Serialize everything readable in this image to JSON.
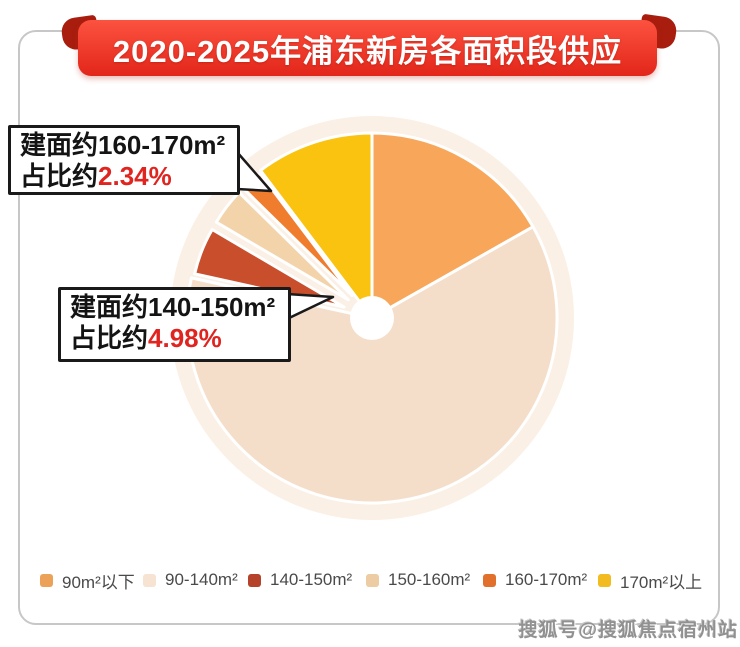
{
  "header": {
    "title": "2020-2025年浦东新房各面积段供应"
  },
  "callouts": [
    {
      "line1": "建面约160-170m²",
      "prefix": "占比约",
      "value": "2.34%"
    },
    {
      "line1": "建面约140-150m²",
      "prefix": "占比约",
      "value": "4.98%"
    }
  ],
  "legend": {
    "items": [
      {
        "key": "under-90",
        "label": "90m²以下",
        "color": "#ECA159"
      },
      {
        "key": "90-140",
        "label": "90-140m²",
        "color": "#F6E3D1"
      },
      {
        "key": "140-150",
        "label": "140-150m²",
        "color": "#B5432C"
      },
      {
        "key": "150-160",
        "label": "150-160m²",
        "color": "#EDCBA3"
      },
      {
        "key": "160-170",
        "label": "160-170m²",
        "color": "#E2702D"
      },
      {
        "key": "over-170",
        "label": "170m²以上",
        "color": "#F2BB20"
      }
    ]
  },
  "watermark": {
    "text": "搜狐号@搜狐焦点宿州站"
  },
  "colors": {
    "banner_red_top": "#FC5240",
    "banner_red_bottom": "#E2261A",
    "banner_fold": "#A81D0E",
    "card_border": "#C7C7C7",
    "glow": "#FAF0E5",
    "accent_red": "#E02420",
    "callout_border": "#1A1A1A",
    "legend_text": "#4A4A4A",
    "watermark_gray": "#919191"
  },
  "chart_data": {
    "type": "pie",
    "title": "2020-2025年浦东新房各面积段供应",
    "value_unit": "%",
    "direction": "clockwise",
    "start_angle_deg": 0,
    "donut_hole": true,
    "legend_position": "bottom",
    "labeled_values": {
      "140-150m²": "4.98%",
      "160-170m²": "2.34%"
    },
    "note": "Only 4.98% and 2.34% are labeled in the image; other shares estimated from arc angles.",
    "segments": [
      {
        "key": "under-90",
        "label": "90m²以下",
        "value": 16.8,
        "color": "#F8A75A",
        "exploded": false
      },
      {
        "key": "90-140",
        "label": "90-140m²",
        "value": 61.68,
        "color": "#F4DEC9",
        "exploded": false
      },
      {
        "key": "140-150",
        "label": "140-150m²",
        "value": 4.98,
        "color": "#C94E2B",
        "exploded": true
      },
      {
        "key": "150-160",
        "label": "150-160m²",
        "value": 3.9,
        "color": "#F3D3AA",
        "exploded": true
      },
      {
        "key": "160-170",
        "label": "160-170m²",
        "value": 2.34,
        "color": "#F07D2D",
        "exploded": true
      },
      {
        "key": "over-170",
        "label": "170m²以上",
        "value": 10.3,
        "color": "#FAC30F",
        "exploded": false
      }
    ]
  }
}
